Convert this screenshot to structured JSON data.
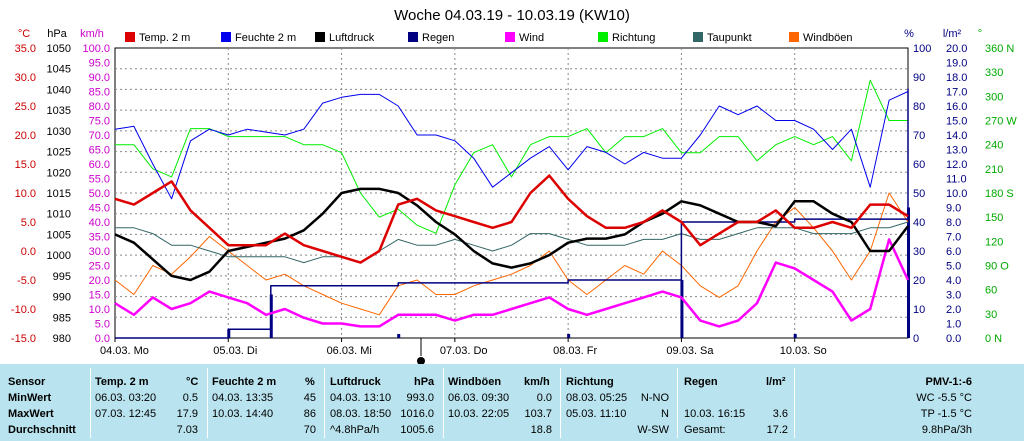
{
  "chart_data": {
    "type": "line",
    "title": "Woche 04.03.19 - 10.03.19 (KW10)",
    "x_ticks": [
      "04.03. Mo",
      "05.03. Di",
      "06.03. Mi",
      "07.03. Do",
      "08.03. Fr",
      "09.03. Sa",
      "10.03. So"
    ],
    "x_range_hours": [
      0,
      168
    ],
    "axes": {
      "temp": {
        "unit": "°C",
        "ticks": [
          "35.0",
          "30.0",
          "25.0",
          "20.0",
          "15.0",
          "10.0",
          "5.0",
          "0.0",
          "-5.0",
          "-10.0",
          "-15.0"
        ],
        "range": [
          -15,
          35
        ],
        "color": "#cc0000"
      },
      "pressure": {
        "unit": "hPa",
        "ticks": [
          "1050",
          "1045",
          "1040",
          "1035",
          "1030",
          "1025",
          "1020",
          "1015",
          "1010",
          "1005",
          "1000",
          "995",
          "990",
          "985",
          "980"
        ],
        "range": [
          980,
          1050
        ],
        "color": "#000000"
      },
      "wind": {
        "unit": "km/h",
        "ticks": [
          "100.0",
          "95.0",
          "90.0",
          "85.0",
          "80.0",
          "75.0",
          "70.0",
          "65.0",
          "60.0",
          "55.0",
          "50.0",
          "45.0",
          "40.0",
          "35.0",
          "30.0",
          "25.0",
          "20.0",
          "15.0",
          "10.0",
          "5.0",
          "0.0"
        ],
        "range": [
          0,
          100
        ],
        "color": "#cc00cc"
      },
      "humidity": {
        "unit": "%",
        "ticks": [
          "100",
          "90",
          "80",
          "70",
          "60",
          "50",
          "40",
          "30",
          "20",
          "10",
          "0"
        ],
        "range": [
          0,
          100
        ],
        "color": "#000080"
      },
      "rain": {
        "unit": "l/m²",
        "ticks": [
          "20.0",
          "19.0",
          "18.0",
          "17.0",
          "16.0",
          "15.0",
          "14.0",
          "13.0",
          "12.0",
          "11.0",
          "10.0",
          "9.0",
          "8.0",
          "7.0",
          "6.0",
          "5.0",
          "4.0",
          "3.0",
          "2.0",
          "1.0",
          "0.0"
        ],
        "range": [
          0,
          20
        ],
        "color": "#000080"
      },
      "direction": {
        "unit": "°",
        "ticks": [
          "360 N",
          "330",
          "300",
          "270 W",
          "240",
          "210",
          "180 S",
          "150",
          "120",
          "90 O",
          "60",
          "30",
          "0 N"
        ],
        "range": [
          0,
          360
        ],
        "color": "#00aa00"
      }
    },
    "legend": [
      {
        "name": "Temp. 2 m",
        "color": "#dd0000"
      },
      {
        "name": "Feuchte 2 m",
        "color": "#0000ee"
      },
      {
        "name": "Luftdruck",
        "color": "#000000"
      },
      {
        "name": "Regen",
        "color": "#000080"
      },
      {
        "name": "Wind",
        "color": "#ff00ff"
      },
      {
        "name": "Richtung",
        "color": "#00ee00"
      },
      {
        "name": "Taupunkt",
        "color": "#336666"
      },
      {
        "name": "Windböen",
        "color": "#ff6600"
      }
    ],
    "series": [
      {
        "name": "Temp. 2 m",
        "axis": "temp",
        "color": "#dd0000",
        "x": [
          0,
          4,
          8,
          12,
          16,
          20,
          24,
          28,
          32,
          36,
          40,
          44,
          48,
          52,
          56,
          60,
          64,
          68,
          72,
          76,
          80,
          84,
          88,
          92,
          96,
          100,
          104,
          108,
          112,
          116,
          120,
          124,
          128,
          132,
          136,
          140,
          144,
          148,
          152,
          156,
          160,
          164,
          168
        ],
        "y": [
          9,
          8,
          10,
          12,
          7,
          4,
          1,
          1,
          1,
          3,
          1,
          0,
          -1,
          -2,
          0,
          8,
          9,
          7,
          6,
          5,
          4,
          5,
          10,
          13,
          9,
          6,
          4,
          4,
          5,
          7,
          5,
          1,
          3,
          5,
          5,
          7,
          4,
          4,
          5,
          4,
          8,
          8,
          6
        ]
      },
      {
        "name": "Feuchte 2 m",
        "axis": "humidity",
        "color": "#0000ee",
        "x": [
          0,
          4,
          8,
          12,
          16,
          20,
          24,
          28,
          32,
          36,
          40,
          44,
          48,
          52,
          56,
          60,
          64,
          68,
          72,
          76,
          80,
          84,
          88,
          92,
          96,
          100,
          104,
          108,
          112,
          116,
          120,
          124,
          128,
          132,
          136,
          140,
          144,
          148,
          152,
          156,
          160,
          164,
          168
        ],
        "y": [
          72,
          73,
          60,
          48,
          68,
          72,
          70,
          72,
          71,
          70,
          72,
          81,
          83,
          84,
          84,
          80,
          70,
          70,
          68,
          62,
          52,
          57,
          62,
          66,
          58,
          66,
          64,
          60,
          64,
          62,
          62,
          70,
          80,
          77,
          80,
          75,
          75,
          72,
          65,
          72,
          52,
          82,
          85
        ]
      },
      {
        "name": "Luftdruck",
        "axis": "pressure",
        "color": "#000000",
        "x": [
          0,
          4,
          8,
          12,
          16,
          20,
          24,
          28,
          32,
          36,
          40,
          44,
          48,
          52,
          56,
          60,
          64,
          68,
          72,
          76,
          80,
          84,
          88,
          92,
          96,
          100,
          104,
          108,
          112,
          116,
          120,
          124,
          128,
          132,
          136,
          140,
          144,
          148,
          152,
          156,
          160,
          164,
          168
        ],
        "y": [
          1005,
          1003,
          999,
          995,
          994,
          996,
          1001,
          1002,
          1003,
          1004,
          1006,
          1010,
          1015,
          1016,
          1016,
          1015,
          1012,
          1008,
          1005,
          1001,
          998,
          997,
          998,
          1000,
          1003,
          1004,
          1004,
          1005,
          1008,
          1010,
          1013,
          1012,
          1010,
          1008,
          1008,
          1007,
          1013,
          1013,
          1010,
          1008,
          1001,
          1001,
          1007
        ]
      },
      {
        "name": "Regen",
        "axis": "rain",
        "color": "#000080",
        "x": [
          0,
          12,
          24,
          30,
          33,
          36,
          48,
          60,
          66,
          72,
          84,
          96,
          108,
          120,
          132,
          144,
          156,
          168
        ],
        "y": [
          0.0,
          0.0,
          0.6,
          0.6,
          3.6,
          3.6,
          3.6,
          3.8,
          3.8,
          3.8,
          3.8,
          4.0,
          4.0,
          8.0,
          8.0,
          8.2,
          8.2,
          17.2
        ]
      },
      {
        "name": "Wind",
        "axis": "wind",
        "color": "#ff00ff",
        "x": [
          0,
          4,
          8,
          12,
          16,
          20,
          24,
          28,
          32,
          36,
          40,
          44,
          48,
          52,
          56,
          60,
          64,
          68,
          72,
          76,
          80,
          84,
          88,
          92,
          96,
          100,
          104,
          108,
          112,
          116,
          120,
          124,
          128,
          132,
          136,
          140,
          144,
          148,
          152,
          156,
          160,
          164,
          168
        ],
        "y": [
          12,
          8,
          14,
          10,
          12,
          16,
          14,
          12,
          8,
          10,
          7,
          5,
          5,
          4,
          4,
          8,
          8,
          8,
          6,
          8,
          8,
          10,
          12,
          14,
          10,
          8,
          10,
          12,
          14,
          16,
          14,
          6,
          4,
          6,
          12,
          26,
          24,
          20,
          16,
          6,
          10,
          34,
          20
        ]
      },
      {
        "name": "Richtung",
        "axis": "direction",
        "color": "#00ee00",
        "x": [
          0,
          4,
          8,
          12,
          16,
          20,
          24,
          28,
          32,
          36,
          40,
          44,
          48,
          52,
          56,
          60,
          64,
          68,
          72,
          76,
          80,
          84,
          88,
          92,
          96,
          100,
          104,
          108,
          112,
          116,
          120,
          124,
          128,
          132,
          136,
          140,
          144,
          148,
          152,
          156,
          160,
          164,
          168
        ],
        "y": [
          240,
          240,
          210,
          200,
          260,
          260,
          250,
          250,
          250,
          250,
          240,
          240,
          230,
          180,
          150,
          160,
          140,
          130,
          190,
          230,
          240,
          200,
          240,
          250,
          250,
          260,
          230,
          250,
          250,
          260,
          230,
          230,
          250,
          250,
          220,
          240,
          250,
          240,
          250,
          220,
          320,
          270,
          270
        ]
      },
      {
        "name": "Taupunkt",
        "axis": "temp",
        "color": "#336666",
        "x": [
          0,
          4,
          8,
          12,
          16,
          20,
          24,
          28,
          32,
          36,
          40,
          44,
          48,
          52,
          56,
          60,
          64,
          68,
          72,
          76,
          80,
          84,
          88,
          92,
          96,
          100,
          104,
          108,
          112,
          116,
          120,
          124,
          128,
          132,
          136,
          140,
          144,
          148,
          152,
          156,
          160,
          164,
          168
        ],
        "y": [
          4,
          4,
          3,
          1,
          1,
          0,
          -1,
          -1,
          -1,
          -1,
          -2,
          -1,
          -1,
          -2,
          0,
          2,
          1,
          1,
          2,
          1,
          0,
          1,
          3,
          3,
          2,
          1,
          1,
          1,
          2,
          2,
          3,
          2,
          2,
          3,
          4,
          4,
          4,
          3,
          3,
          3,
          4,
          4,
          5
        ]
      },
      {
        "name": "Windböen",
        "axis": "wind",
        "color": "#ff6600",
        "x": [
          0,
          4,
          8,
          12,
          16,
          20,
          24,
          28,
          32,
          36,
          40,
          44,
          48,
          52,
          56,
          60,
          64,
          68,
          72,
          76,
          80,
          84,
          88,
          92,
          96,
          100,
          104,
          108,
          112,
          116,
          120,
          124,
          128,
          132,
          136,
          140,
          144,
          148,
          152,
          156,
          160,
          164,
          168
        ],
        "y": [
          20,
          15,
          25,
          22,
          28,
          35,
          30,
          25,
          20,
          22,
          18,
          15,
          12,
          10,
          8,
          18,
          20,
          15,
          15,
          18,
          20,
          22,
          25,
          30,
          20,
          15,
          20,
          25,
          22,
          30,
          25,
          18,
          14,
          18,
          30,
          40,
          45,
          38,
          30,
          20,
          30,
          50,
          40
        ]
      }
    ]
  },
  "stats": {
    "headers": {
      "sensor": "Sensor",
      "temp": "Temp. 2 m",
      "temp_unit": "°C",
      "hum": "Feuchte 2 m",
      "hum_unit": "%",
      "press": "Luftdruck",
      "press_unit": "hPa",
      "gust": "Windböen",
      "gust_unit": "km/h",
      "dir": "Richtung",
      "rain": "Regen",
      "rain_unit": "l/m²",
      "pmv": "PMV-1:-6"
    },
    "labels": {
      "min": "MinWert",
      "max": "MaxWert",
      "avg": "Durchschnitt"
    },
    "min": {
      "temp_time": "06.03. 03:20",
      "temp": "0.5",
      "hum_time": "04.03. 13:35",
      "hum": "45",
      "press_time": "04.03. 13:10",
      "press": "993.0",
      "gust_time": "06.03. 09:30",
      "gust": "0.0",
      "dir_time": "08.03. 05:25",
      "dir": "N-NO",
      "pmv": "WC -5.5 °C"
    },
    "max": {
      "temp_time": "07.03. 12:45",
      "temp": "17.9",
      "hum_time": "10.03. 14:40",
      "hum": "86",
      "press_time": "08.03. 18:50",
      "press": "1016.0",
      "gust_time": "10.03. 22:05",
      "gust": "103.7",
      "dir_time": "05.03. 11:10",
      "dir": "N",
      "rain_time": "10.03. 16:15",
      "rain": "3.6",
      "pmv": "TP -1.5 °C"
    },
    "avg": {
      "temp": "7.03",
      "hum": "70",
      "press_trend": "^4.8hPa/h",
      "press": "1005.6",
      "gust": "18.8",
      "dir": "W-SW",
      "rain_label": "Gesamt:",
      "rain": "17.2",
      "pmv": "9.8hPa/3h"
    }
  }
}
